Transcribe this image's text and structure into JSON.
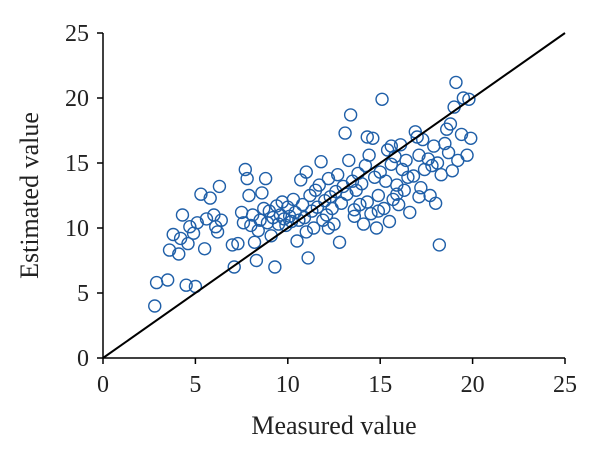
{
  "chart_data": {
    "type": "scatter",
    "title": "",
    "xlabel": "Measured value",
    "ylabel": "Estimated value",
    "xlim": [
      0,
      25
    ],
    "ylim": [
      0,
      25
    ],
    "xticks": [
      "0",
      "5",
      "10",
      "15",
      "20",
      "25"
    ],
    "yticks": [
      "0",
      "5",
      "10",
      "15",
      "20",
      "25"
    ],
    "grid": false,
    "legend": "none",
    "marker": "open circle",
    "marker_color": "#1f5fa8",
    "reference_line": {
      "from": [
        0,
        0
      ],
      "to": [
        25,
        25
      ],
      "color": "#000000"
    },
    "series": [
      {
        "points": [
          [
            2.8,
            4.0
          ],
          [
            2.9,
            5.8
          ],
          [
            3.5,
            6.0
          ],
          [
            3.6,
            8.3
          ],
          [
            3.8,
            9.5
          ],
          [
            4.1,
            8.0
          ],
          [
            4.2,
            9.2
          ],
          [
            4.3,
            11.0
          ],
          [
            4.5,
            5.6
          ],
          [
            4.6,
            8.8
          ],
          [
            4.7,
            10.1
          ],
          [
            4.9,
            9.6
          ],
          [
            5.0,
            5.5
          ],
          [
            5.1,
            10.4
          ],
          [
            5.3,
            12.6
          ],
          [
            5.5,
            8.4
          ],
          [
            5.6,
            10.7
          ],
          [
            5.8,
            12.3
          ],
          [
            6.0,
            11.0
          ],
          [
            6.1,
            10.1
          ],
          [
            6.2,
            9.7
          ],
          [
            6.3,
            13.2
          ],
          [
            6.4,
            10.6
          ],
          [
            7.0,
            8.7
          ],
          [
            7.1,
            7.0
          ],
          [
            7.3,
            8.8
          ],
          [
            7.5,
            11.2
          ],
          [
            7.6,
            10.4
          ],
          [
            7.7,
            14.5
          ],
          [
            7.8,
            13.8
          ],
          [
            7.9,
            12.5
          ],
          [
            8.0,
            10.2
          ],
          [
            8.1,
            11.0
          ],
          [
            8.2,
            8.9
          ],
          [
            8.3,
            7.5
          ],
          [
            8.4,
            9.8
          ],
          [
            8.5,
            10.6
          ],
          [
            8.6,
            12.7
          ],
          [
            8.7,
            11.5
          ],
          [
            8.8,
            13.8
          ],
          [
            8.9,
            10.4
          ],
          [
            9.0,
            11.3
          ],
          [
            9.1,
            9.4
          ],
          [
            9.2,
            10.8
          ],
          [
            9.3,
            7.0
          ],
          [
            9.4,
            11.7
          ],
          [
            9.5,
            10.3
          ],
          [
            9.6,
            11.0
          ],
          [
            9.7,
            12.0
          ],
          [
            9.8,
            10.7
          ],
          [
            9.9,
            10.2
          ],
          [
            10.0,
            11.6
          ],
          [
            10.1,
            10.9
          ],
          [
            10.2,
            10.5
          ],
          [
            10.3,
            12.2
          ],
          [
            10.4,
            11.2
          ],
          [
            10.5,
            9.0
          ],
          [
            10.6,
            10.6
          ],
          [
            10.7,
            13.7
          ],
          [
            10.8,
            11.8
          ],
          [
            10.9,
            10.8
          ],
          [
            11.0,
            14.3
          ],
          [
            11.1,
            7.7
          ],
          [
            11.2,
            12.5
          ],
          [
            11.3,
            11.3
          ],
          [
            11.4,
            10.0
          ],
          [
            11.5,
            12.9
          ],
          [
            11.6,
            11.6
          ],
          [
            11.7,
            13.3
          ],
          [
            11.8,
            15.1
          ],
          [
            11.9,
            10.6
          ],
          [
            12.0,
            12.1
          ],
          [
            12.1,
            11.0
          ],
          [
            12.2,
            13.8
          ],
          [
            12.3,
            12.4
          ],
          [
            12.4,
            11.5
          ],
          [
            12.5,
            10.3
          ],
          [
            12.6,
            12.8
          ],
          [
            12.7,
            14.1
          ],
          [
            12.8,
            8.9
          ],
          [
            12.9,
            11.9
          ],
          [
            13.0,
            13.2
          ],
          [
            13.1,
            17.3
          ],
          [
            13.2,
            12.6
          ],
          [
            13.3,
            15.2
          ],
          [
            13.4,
            18.7
          ],
          [
            13.5,
            13.6
          ],
          [
            13.6,
            11.4
          ],
          [
            13.7,
            12.9
          ],
          [
            13.8,
            14.2
          ],
          [
            13.9,
            11.8
          ],
          [
            14.0,
            13.4
          ],
          [
            14.1,
            10.3
          ],
          [
            14.2,
            14.8
          ],
          [
            14.3,
            12.0
          ],
          [
            14.4,
            15.6
          ],
          [
            14.5,
            11.1
          ],
          [
            14.6,
            16.9
          ],
          [
            14.7,
            13.9
          ],
          [
            14.8,
            10.0
          ],
          [
            14.9,
            12.5
          ],
          [
            15.0,
            14.3
          ],
          [
            15.1,
            19.9
          ],
          [
            15.2,
            11.5
          ],
          [
            15.3,
            13.6
          ],
          [
            15.4,
            16.0
          ],
          [
            15.5,
            10.5
          ],
          [
            15.6,
            14.9
          ],
          [
            15.7,
            12.2
          ],
          [
            15.8,
            15.5
          ],
          [
            15.9,
            13.3
          ],
          [
            16.0,
            11.8
          ],
          [
            16.1,
            16.4
          ],
          [
            16.2,
            14.5
          ],
          [
            16.3,
            12.9
          ],
          [
            16.4,
            15.2
          ],
          [
            16.5,
            13.9
          ],
          [
            16.6,
            11.2
          ],
          [
            16.8,
            14.0
          ],
          [
            17.0,
            17.0
          ],
          [
            17.1,
            15.6
          ],
          [
            17.2,
            13.1
          ],
          [
            17.3,
            16.8
          ],
          [
            17.4,
            14.5
          ],
          [
            17.6,
            15.3
          ],
          [
            17.7,
            12.5
          ],
          [
            17.8,
            14.8
          ],
          [
            17.9,
            16.3
          ],
          [
            18.0,
            11.9
          ],
          [
            18.1,
            15.0
          ],
          [
            18.2,
            8.7
          ],
          [
            18.3,
            14.1
          ],
          [
            18.5,
            16.5
          ],
          [
            18.6,
            17.6
          ],
          [
            18.7,
            15.8
          ],
          [
            18.8,
            18.0
          ],
          [
            18.9,
            14.4
          ],
          [
            19.0,
            19.3
          ],
          [
            19.1,
            21.2
          ],
          [
            19.2,
            15.2
          ],
          [
            19.4,
            17.2
          ],
          [
            19.5,
            20.0
          ],
          [
            19.7,
            15.6
          ],
          [
            19.8,
            19.9
          ],
          [
            19.9,
            16.9
          ],
          [
            14.3,
            17.0
          ],
          [
            15.6,
            16.3
          ],
          [
            16.9,
            17.4
          ],
          [
            12.2,
            10.0
          ],
          [
            11.0,
            9.7
          ],
          [
            13.6,
            10.9
          ],
          [
            14.9,
            11.3
          ],
          [
            15.9,
            12.6
          ],
          [
            17.1,
            12.4
          ]
        ]
      }
    ]
  }
}
